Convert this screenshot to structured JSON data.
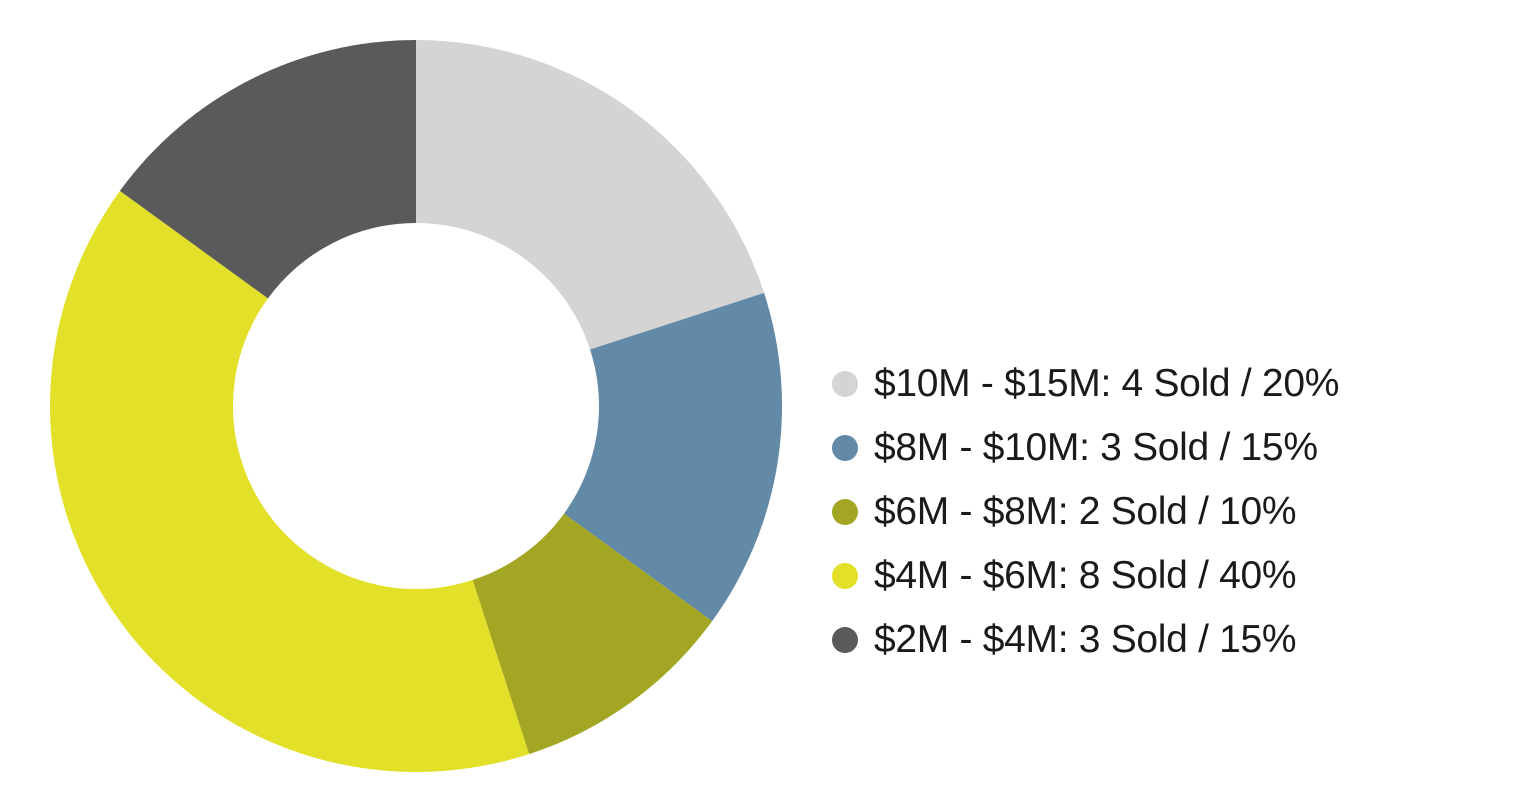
{
  "chart_data": {
    "type": "pie",
    "variant": "donut",
    "title": "",
    "slices": [
      {
        "label": "$10M - $15M",
        "sold": 4,
        "percent": 20,
        "legend_text": "$10M - $15M: 4 Sold / 20%",
        "color": "#d4d4d4"
      },
      {
        "label": "$8M - $10M",
        "sold": 3,
        "percent": 15,
        "legend_text": "$8M - $10M: 3 Sold / 15%",
        "color": "#6289a6"
      },
      {
        "label": "$6M - $8M",
        "sold": 2,
        "percent": 10,
        "legend_text": "$6M - $8M: 2 Sold / 10%",
        "color": "#a3a623"
      },
      {
        "label": "$4M - $6M",
        "sold": 8,
        "percent": 40,
        "legend_text": "$4M - $6M: 8 Sold / 40%",
        "color": "#e2e029"
      },
      {
        "label": "$2M - $4M",
        "sold": 3,
        "percent": 15,
        "legend_text": "$2M - $4M: 3 Sold / 15%",
        "color": "#5a5a5a"
      }
    ],
    "legend_position": "right"
  }
}
